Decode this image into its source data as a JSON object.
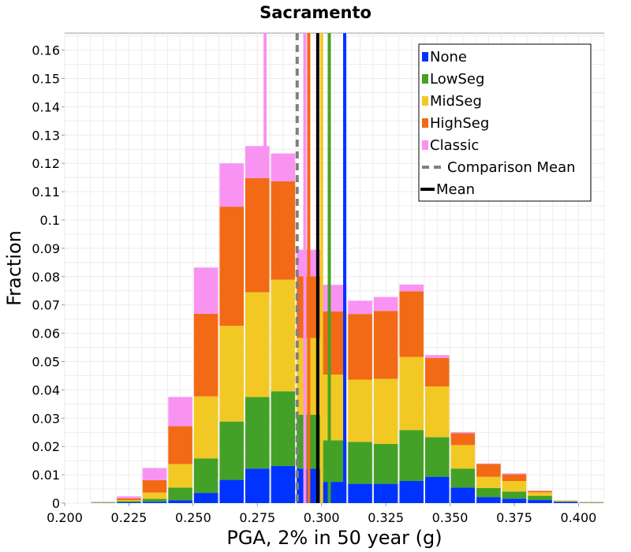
{
  "chart_data": {
    "type": "bar",
    "stacked": true,
    "title": "Sacramento",
    "xlabel": "PGA, 2% in 50 year (g)",
    "ylabel": "Fraction",
    "xlim": [
      0.2,
      0.41
    ],
    "ylim": [
      0,
      0.166
    ],
    "bin_width": 0.01,
    "x_ticks": [
      "0.200",
      "0.225",
      "0.250",
      "0.275",
      "0.300",
      "0.325",
      "0.350",
      "0.375",
      "0.400"
    ],
    "y_ticks": [
      "0",
      "0.01",
      "0.02",
      "0.03",
      "0.04",
      "0.05",
      "0.06",
      "0.07",
      "0.08",
      "0.09",
      "0.1",
      "0.11",
      "0.12",
      "0.13",
      "0.14",
      "0.15",
      "0.16"
    ],
    "grid": true,
    "legend_position": "top-right",
    "bin_centers": [
      0.215,
      0.225,
      0.235,
      0.245,
      0.255,
      0.265,
      0.275,
      0.285,
      0.295,
      0.305,
      0.315,
      0.325,
      0.335,
      0.345,
      0.355,
      0.365,
      0.375,
      0.385,
      0.395,
      0.405
    ],
    "series": [
      {
        "name": "None",
        "color": "#0033ff",
        "values": [
          0.0001,
          0.0003,
          0.0005,
          0.001,
          0.0036,
          0.0082,
          0.0122,
          0.0131,
          0.0122,
          0.0075,
          0.0068,
          0.0068,
          0.0078,
          0.0093,
          0.0055,
          0.0021,
          0.0016,
          0.0011,
          0.0004,
          0.0001
        ]
      },
      {
        "name": "LowSeg",
        "color": "#44a127",
        "values": [
          0.0001,
          0.0004,
          0.001,
          0.0045,
          0.0122,
          0.0206,
          0.0253,
          0.0264,
          0.019,
          0.0147,
          0.0148,
          0.0141,
          0.018,
          0.014,
          0.0067,
          0.0032,
          0.0025,
          0.0015,
          0.0002,
          0.0001
        ]
      },
      {
        "name": "MidSeg",
        "color": "#f2c824",
        "values": [
          0.0001,
          0.0004,
          0.0022,
          0.0083,
          0.0219,
          0.0338,
          0.037,
          0.0394,
          0.0271,
          0.0232,
          0.022,
          0.023,
          0.0258,
          0.0179,
          0.0083,
          0.004,
          0.0037,
          0.0012,
          0.0002,
          0.0001
        ]
      },
      {
        "name": "HighSeg",
        "color": "#f26a15",
        "values": [
          0.0001,
          0.0006,
          0.0044,
          0.0134,
          0.0292,
          0.0421,
          0.0403,
          0.0348,
          0.0218,
          0.0223,
          0.0232,
          0.024,
          0.0232,
          0.0101,
          0.0042,
          0.0045,
          0.0024,
          0.0005,
          0.0001,
          0.0001
        ]
      },
      {
        "name": "Classic",
        "color": "#f993f2",
        "values": [
          0.0,
          0.0007,
          0.0043,
          0.0103,
          0.0163,
          0.0153,
          0.0113,
          0.0098,
          0.0094,
          0.0094,
          0.0047,
          0.0049,
          0.0024,
          0.001,
          0.0004,
          0.0002,
          0.0003,
          0.0001,
          0.0001,
          0.0
        ]
      }
    ],
    "vertical_lines": [
      {
        "x": 0.2905,
        "color": "#808080",
        "style": "dashed"
      },
      {
        "x": 0.2935,
        "color": "#f993f2",
        "style": "solid"
      },
      {
        "x": 0.295,
        "color": "#f26a15",
        "style": "solid"
      },
      {
        "x": 0.2985,
        "color": "#000000",
        "style": "solid"
      },
      {
        "x": 0.3,
        "color": "#f2c824",
        "style": "solid"
      },
      {
        "x": 0.303,
        "color": "#44a127",
        "style": "solid"
      },
      {
        "x": 0.309,
        "color": "#0033ff",
        "style": "solid"
      }
    ],
    "pink_peak_line": {
      "x": 0.278,
      "color": "#f993f2"
    },
    "legend": [
      {
        "label": "None",
        "kind": "box",
        "color": "#0033ff"
      },
      {
        "label": "LowSeg",
        "kind": "box",
        "color": "#44a127"
      },
      {
        "label": "MidSeg",
        "kind": "box",
        "color": "#f2c824"
      },
      {
        "label": "HighSeg",
        "kind": "box",
        "color": "#f26a15"
      },
      {
        "label": "Classic",
        "kind": "box",
        "color": "#f993f2"
      },
      {
        "label": "Comparison Mean",
        "kind": "dashed",
        "color": "#808080"
      },
      {
        "label": "Mean",
        "kind": "line",
        "color": "#000000"
      }
    ]
  }
}
